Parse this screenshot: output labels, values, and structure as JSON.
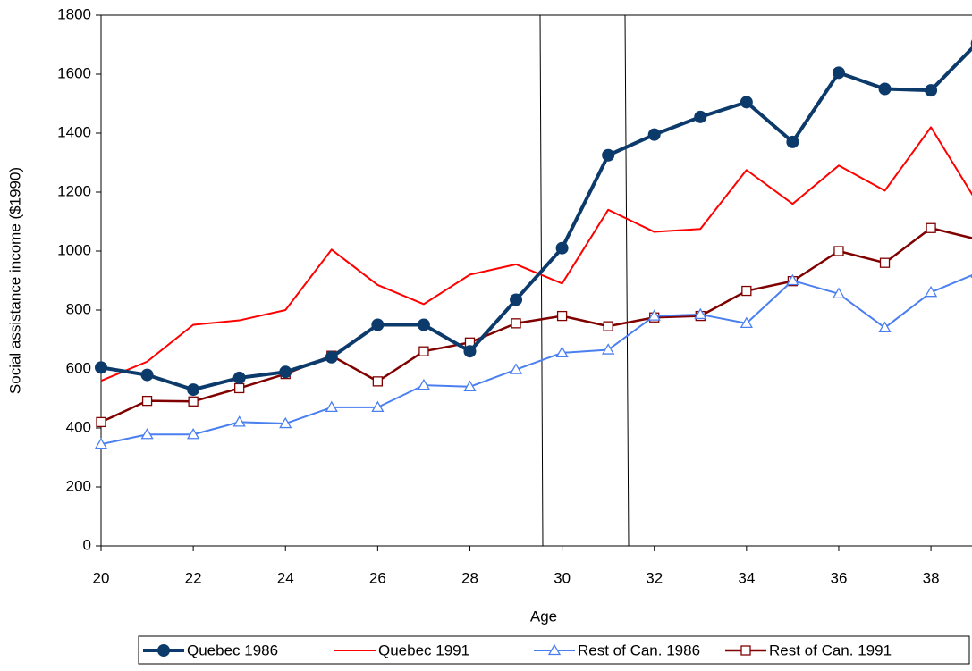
{
  "chart_data": {
    "type": "line",
    "x_label": "Age",
    "y_label": "Social assistance income ($1990)",
    "x": [
      20,
      21,
      22,
      23,
      24,
      25,
      26,
      27,
      28,
      29,
      30,
      31,
      32,
      33,
      34,
      35,
      36,
      37,
      38,
      39
    ],
    "xlim": [
      20,
      39
    ],
    "xticks": [
      20,
      22,
      24,
      26,
      28,
      30,
      32,
      34,
      36,
      38
    ],
    "ylim": [
      0,
      1800
    ],
    "yticks": [
      0,
      200,
      400,
      600,
      800,
      1000,
      1200,
      1400,
      1600,
      1800
    ],
    "series": [
      {
        "name": "Quebec 1986",
        "color": "#0b3a6b",
        "marker": "circle",
        "values": [
          605,
          580,
          530,
          570,
          590,
          640,
          750,
          750,
          660,
          835,
          1010,
          1325,
          1395,
          1455,
          1505,
          1370,
          1605,
          1550,
          1545,
          1705
        ]
      },
      {
        "name": "Quebec 1991",
        "color": "#ff0000",
        "marker": "none",
        "values": [
          560,
          625,
          750,
          765,
          800,
          1005,
          885,
          820,
          920,
          955,
          890,
          1140,
          1065,
          1075,
          1275,
          1160,
          1290,
          1205,
          1420,
          1165
        ]
      },
      {
        "name": "Rest of Can. 1986",
        "color": "#4a7ff0",
        "marker": "triangle",
        "values": [
          345,
          378,
          378,
          420,
          415,
          470,
          470,
          545,
          540,
          598,
          655,
          665,
          780,
          785,
          755,
          900,
          855,
          740,
          860,
          925
        ]
      },
      {
        "name": "Rest of Can. 1991",
        "color": "#800000",
        "marker": "square",
        "values": [
          420,
          492,
          490,
          535,
          583,
          645,
          558,
          660,
          690,
          755,
          780,
          745,
          775,
          780,
          865,
          898,
          1000,
          960,
          1078,
          1040
        ]
      }
    ]
  }
}
